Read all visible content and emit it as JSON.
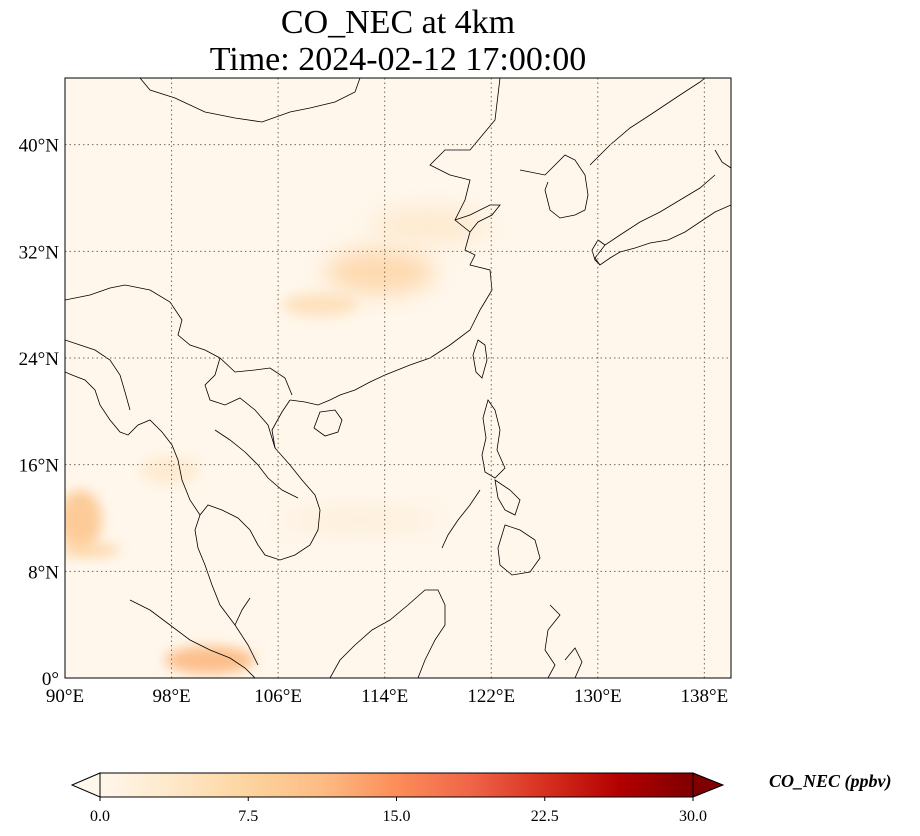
{
  "title": {
    "line1": "CO_NEC at 4km",
    "line2": "Time: 2024-02-12 17:00:00"
  },
  "map": {
    "lon_range": [
      90,
      140
    ],
    "lat_range": [
      0,
      45
    ],
    "lon_ticks": [
      {
        "value": 90,
        "label": "90°E"
      },
      {
        "value": 98,
        "label": "98°E"
      },
      {
        "value": 106,
        "label": "106°E"
      },
      {
        "value": 114,
        "label": "114°E"
      },
      {
        "value": 122,
        "label": "122°E"
      },
      {
        "value": 130,
        "label": "130°E"
      },
      {
        "value": 138,
        "label": "138°E"
      }
    ],
    "lat_ticks": [
      {
        "value": 0,
        "label": "0°"
      },
      {
        "value": 8,
        "label": "8°N"
      },
      {
        "value": 16,
        "label": "16°N"
      },
      {
        "value": 24,
        "label": "24°N"
      },
      {
        "value": 32,
        "label": "32°N"
      },
      {
        "value": 40,
        "label": "40°N"
      }
    ],
    "gridlines": true,
    "background_color": "#fff7ec",
    "coast_color": "#000000",
    "grid_color": "#7a6a55"
  },
  "colorbar": {
    "label": "CO_NEC (ppbv)",
    "min": 0,
    "max": 30,
    "ticks": [
      {
        "value": 0,
        "label": "0.0"
      },
      {
        "value": 7.5,
        "label": "7.5"
      },
      {
        "value": 15,
        "label": "15.0"
      },
      {
        "value": 22.5,
        "label": "22.5"
      },
      {
        "value": 30,
        "label": "30.0"
      }
    ],
    "colormap": [
      "#fff7ec",
      "#fee8c8",
      "#fdd49e",
      "#fdbb84",
      "#fc8d59",
      "#ef6548",
      "#d7301f",
      "#b30000",
      "#7f0000"
    ],
    "extend": "both"
  }
}
